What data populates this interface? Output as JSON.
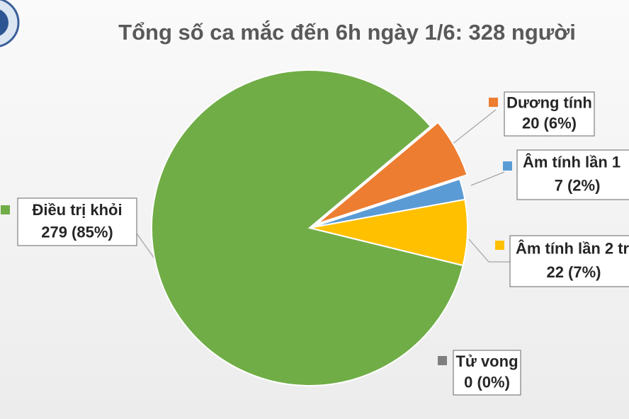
{
  "chart_data": {
    "type": "pie",
    "title": "Tổng số ca mắc đến 6h ngày 1/6: 328 người",
    "categories": [
      "Dương tính",
      "Âm tính lần 1",
      "Âm tính lần 2 tr",
      "Tử vong",
      "Điều trị khỏi"
    ],
    "values": [
      20,
      7,
      22,
      0,
      279
    ],
    "value_labels": [
      "20 (6%)",
      "7 (2%)",
      "22 (7%)",
      "0 (0%)",
      "279 (85%)"
    ],
    "colors": [
      "#ed7d31",
      "#5b9bd5",
      "#ffc000",
      "#7f7f7f",
      "#70ad47"
    ]
  }
}
